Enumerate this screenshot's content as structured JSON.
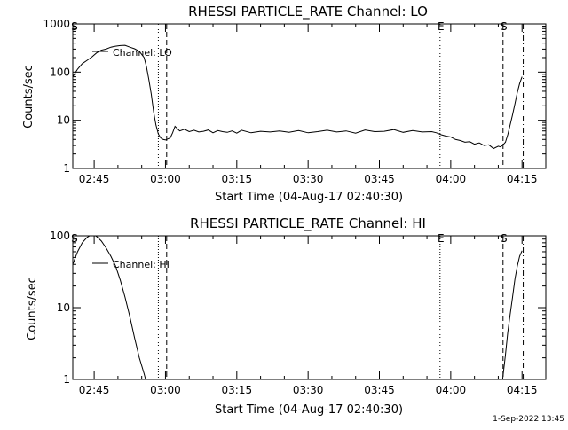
{
  "chart_data": [
    {
      "type": "line",
      "title": "RHESSI PARTICLE_RATE Channel: LO",
      "xlabel": "Start Time (04-Aug-17 02:40:30)",
      "ylabel": "Counts/sec",
      "y_scale": "log",
      "ylim": [
        1,
        1000
      ],
      "xlim": [
        "02:40:30",
        "04:20:00"
      ],
      "y_ticks": [
        "1",
        "10",
        "100",
        "1000"
      ],
      "x_ticks": [
        "02:45",
        "03:00",
        "03:15",
        "03:30",
        "03:45",
        "04:00",
        "04:15"
      ],
      "legend": {
        "label": "Channel: LO",
        "placement": "top-left"
      },
      "markers": [
        {
          "time": "02:40:40",
          "label": "S",
          "style": "none"
        },
        {
          "time": "02:58:30",
          "label": "",
          "style": "dotted"
        },
        {
          "time": "03:00:15",
          "label": "",
          "style": "dashed"
        },
        {
          "time": "03:57:45",
          "label": "E",
          "style": "dotted"
        },
        {
          "time": "04:11:00",
          "label": "S",
          "style": "dashed"
        },
        {
          "time": "04:15:15",
          "label": "",
          "style": "dashdot"
        }
      ],
      "series": [
        {
          "x": [
            "02:40:30",
            "02:41:30",
            "02:42:30",
            "02:43:30",
            "02:44:30",
            "02:45:30",
            "02:46:30",
            "02:47:30",
            "02:48:30",
            "02:49:30",
            "02:50:30",
            "02:51:30",
            "02:52:30",
            "02:53:30",
            "02:54:30",
            "02:55:30",
            "02:56:00",
            "02:56:30",
            "02:57:00",
            "02:57:30",
            "02:58:00",
            "02:58:30",
            "02:59:00",
            "02:59:30",
            "03:00:00",
            "03:00:30",
            "03:01:00",
            "03:01:30",
            "03:02:00",
            "03:03:00",
            "03:04:00",
            "03:05:00",
            "03:06:00",
            "03:07:00",
            "03:08:00",
            "03:09:00",
            "03:10:00",
            "03:11:00",
            "03:12:00",
            "03:13:00",
            "03:14:00",
            "03:15:00",
            "03:16:00",
            "03:18:00",
            "03:20:00",
            "03:22:00",
            "03:24:00",
            "03:26:00",
            "03:28:00",
            "03:30:00",
            "03:32:00",
            "03:34:00",
            "03:36:00",
            "03:38:00",
            "03:40:00",
            "03:42:00",
            "03:44:00",
            "03:46:00",
            "03:48:00",
            "03:50:00",
            "03:52:00",
            "03:54:00",
            "03:56:00",
            "03:57:00",
            "03:58:00",
            "03:59:00",
            "04:00:00",
            "04:01:00",
            "04:02:00",
            "04:03:00",
            "04:04:00",
            "04:05:00",
            "04:06:00",
            "04:07:00",
            "04:08:00",
            "04:09:00",
            "04:10:00",
            "04:10:30",
            "04:11:00",
            "04:11:30",
            "04:12:00",
            "04:12:30",
            "04:13:00",
            "04:13:30",
            "04:14:00",
            "04:14:30",
            "04:15:00"
          ],
          "y": [
            80,
            115,
            150,
            175,
            205,
            250,
            285,
            300,
            330,
            345,
            355,
            360,
            330,
            305,
            270,
            200,
            130,
            70,
            35,
            15,
            8,
            5.2,
            4.3,
            4.0,
            3.9,
            4.1,
            4.3,
            5.5,
            7.5,
            6.0,
            6.5,
            5.8,
            6.2,
            5.7,
            5.9,
            6.3,
            5.5,
            6.1,
            5.8,
            5.6,
            6.0,
            5.4,
            6.2,
            5.5,
            5.9,
            5.7,
            6.0,
            5.6,
            6.1,
            5.5,
            5.8,
            6.2,
            5.7,
            6.0,
            5.4,
            6.3,
            5.8,
            5.9,
            6.4,
            5.6,
            6.1,
            5.7,
            5.8,
            5.5,
            5.0,
            4.7,
            4.5,
            4.0,
            3.8,
            3.5,
            3.6,
            3.2,
            3.4,
            3.0,
            3.1,
            2.6,
            2.9,
            2.8,
            3.1,
            3.5,
            5,
            8,
            13,
            22,
            38,
            58,
            80
          ]
        }
      ]
    },
    {
      "type": "line",
      "title": "RHESSI PARTICLE_RATE Channel: HI",
      "xlabel": "Start Time (04-Aug-17 02:40:30)",
      "ylabel": "Counts/sec",
      "y_scale": "log",
      "ylim": [
        1,
        100
      ],
      "xlim": [
        "02:40:30",
        "04:20:00"
      ],
      "y_ticks": [
        "1",
        "10",
        "100"
      ],
      "x_ticks": [
        "02:45",
        "03:00",
        "03:15",
        "03:30",
        "03:45",
        "04:00",
        "04:15"
      ],
      "legend": {
        "label": "Channel: HI",
        "placement": "top-left"
      },
      "markers": [
        {
          "time": "02:40:40",
          "label": "S",
          "style": "none"
        },
        {
          "time": "02:58:30",
          "label": "",
          "style": "dotted"
        },
        {
          "time": "03:00:15",
          "label": "",
          "style": "dashed"
        },
        {
          "time": "03:57:45",
          "label": "E",
          "style": "dotted"
        },
        {
          "time": "04:11:00",
          "label": "S",
          "style": "dashed"
        },
        {
          "time": "04:15:15",
          "label": "",
          "style": "dashdot"
        }
      ],
      "series": [
        {
          "x": [
            "02:40:30",
            "02:41:30",
            "02:42:30",
            "02:43:30",
            "02:44:30",
            "02:45:00",
            "02:45:30",
            "02:46:30",
            "02:47:30",
            "02:48:30",
            "02:49:30",
            "02:50:30",
            "02:51:30",
            "02:52:30",
            "02:53:30",
            "02:54:30",
            "02:55:30",
            "02:56:00"
          ],
          "y": [
            40,
            60,
            80,
            95,
            105,
            103,
            98,
            85,
            68,
            52,
            38,
            24,
            14,
            7.5,
            3.8,
            2.0,
            1.2,
            0.9
          ]
        },
        {
          "x": [
            "04:10:50",
            "04:11:30",
            "04:12:00",
            "04:12:30",
            "04:13:00",
            "04:13:30",
            "04:14:00",
            "04:14:30",
            "04:15:00"
          ],
          "y": [
            0.9,
            2.2,
            4.5,
            8,
            14,
            25,
            38,
            52,
            62
          ]
        }
      ]
    }
  ],
  "timestamp": "1-Sep-2022 13:45",
  "colors": {
    "background": "#ffffff",
    "foreground": "#000000"
  }
}
